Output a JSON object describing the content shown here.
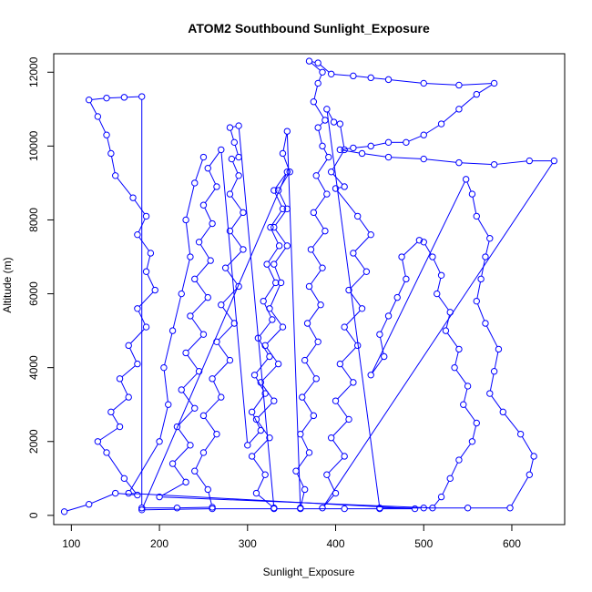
{
  "chart_data": {
    "type": "scatter",
    "title": "ATOM2 Southbound Sunlight_Exposure",
    "xlabel": "Sunlight_Exposure",
    "ylabel": "Altitude (m)",
    "xlim": [
      80,
      660
    ],
    "ylim": [
      -250,
      12500
    ],
    "xticks": [
      100,
      200,
      300,
      400,
      500,
      600
    ],
    "yticks": [
      0,
      2000,
      4000,
      6000,
      8000,
      10000,
      12000
    ],
    "grid": false,
    "plot_style": "points connected by lines (type=o), open circle markers",
    "series": [
      {
        "color": "#0000ff",
        "points": [
          [
            92,
            100
          ],
          [
            120,
            300
          ],
          [
            150,
            600
          ],
          [
            175,
            550
          ],
          [
            160,
            1000
          ],
          [
            140,
            1700
          ],
          [
            130,
            2000
          ],
          [
            155,
            2400
          ],
          [
            145,
            2800
          ],
          [
            165,
            3200
          ],
          [
            155,
            3700
          ],
          [
            175,
            4100
          ],
          [
            165,
            4600
          ],
          [
            185,
            5100
          ],
          [
            175,
            5600
          ],
          [
            195,
            6100
          ],
          [
            185,
            6600
          ],
          [
            190,
            7100
          ],
          [
            175,
            7600
          ],
          [
            185,
            8100
          ],
          [
            170,
            8600
          ],
          [
            150,
            9200
          ],
          [
            145,
            9800
          ],
          [
            140,
            10300
          ],
          [
            130,
            10800
          ],
          [
            120,
            11250
          ],
          [
            140,
            11300
          ],
          [
            160,
            11320
          ],
          [
            180,
            11340
          ],
          [
            180,
            200
          ],
          [
            220,
            200
          ],
          [
            260,
            220
          ],
          [
            255,
            700
          ],
          [
            240,
            1200
          ],
          [
            250,
            1700
          ],
          [
            265,
            2200
          ],
          [
            250,
            2700
          ],
          [
            270,
            3200
          ],
          [
            260,
            3700
          ],
          [
            280,
            4200
          ],
          [
            265,
            4700
          ],
          [
            285,
            5200
          ],
          [
            270,
            5700
          ],
          [
            290,
            6200
          ],
          [
            275,
            6700
          ],
          [
            295,
            7200
          ],
          [
            280,
            7700
          ],
          [
            295,
            8200
          ],
          [
            280,
            8700
          ],
          [
            290,
            9200
          ],
          [
            282,
            9650
          ],
          [
            290,
            9700
          ],
          [
            285,
            10100
          ],
          [
            280,
            10500
          ],
          [
            290,
            10550
          ],
          [
            330,
            200
          ],
          [
            310,
            600
          ],
          [
            320,
            1100
          ],
          [
            305,
            1600
          ],
          [
            325,
            2100
          ],
          [
            310,
            2600
          ],
          [
            330,
            3100
          ],
          [
            315,
            3600
          ],
          [
            335,
            4100
          ],
          [
            320,
            4600
          ],
          [
            340,
            5100
          ],
          [
            325,
            5600
          ],
          [
            338,
            6300
          ],
          [
            330,
            6800
          ],
          [
            345,
            7300
          ],
          [
            330,
            7800
          ],
          [
            345,
            8300
          ],
          [
            335,
            8800
          ],
          [
            348,
            9300
          ],
          [
            340,
            9800
          ],
          [
            345,
            10400
          ],
          [
            360,
            200
          ],
          [
            365,
            700
          ],
          [
            355,
            1200
          ],
          [
            370,
            1700
          ],
          [
            360,
            2200
          ],
          [
            375,
            2700
          ],
          [
            362,
            3200
          ],
          [
            378,
            3700
          ],
          [
            365,
            4200
          ],
          [
            380,
            4700
          ],
          [
            368,
            5200
          ],
          [
            383,
            5700
          ],
          [
            370,
            6200
          ],
          [
            385,
            6700
          ],
          [
            372,
            7200
          ],
          [
            388,
            7700
          ],
          [
            375,
            8200
          ],
          [
            390,
            8700
          ],
          [
            378,
            9200
          ],
          [
            392,
            9700
          ],
          [
            385,
            10000
          ],
          [
            380,
            10500
          ],
          [
            388,
            10700
          ],
          [
            375,
            11200
          ],
          [
            380,
            11700
          ],
          [
            385,
            12000
          ],
          [
            370,
            12300
          ],
          [
            380,
            12250
          ],
          [
            395,
            11950
          ],
          [
            420,
            11900
          ],
          [
            440,
            11850
          ],
          [
            460,
            11800
          ],
          [
            500,
            11700
          ],
          [
            540,
            11650
          ],
          [
            580,
            11700
          ],
          [
            560,
            11400
          ],
          [
            540,
            11000
          ],
          [
            520,
            10600
          ],
          [
            500,
            10300
          ],
          [
            480,
            10100
          ],
          [
            460,
            10100
          ],
          [
            440,
            10000
          ],
          [
            420,
            9950
          ],
          [
            405,
            9900
          ],
          [
            430,
            9800
          ],
          [
            460,
            9700
          ],
          [
            500,
            9650
          ],
          [
            540,
            9550
          ],
          [
            580,
            9500
          ],
          [
            620,
            9600
          ],
          [
            648,
            9600
          ],
          [
            385,
            200
          ],
          [
            400,
            600
          ],
          [
            390,
            1100
          ],
          [
            410,
            1600
          ],
          [
            395,
            2100
          ],
          [
            415,
            2600
          ],
          [
            400,
            3100
          ],
          [
            420,
            3600
          ],
          [
            405,
            4100
          ],
          [
            425,
            4600
          ],
          [
            410,
            5100
          ],
          [
            430,
            5600
          ],
          [
            415,
            6100
          ],
          [
            435,
            6600
          ],
          [
            420,
            7100
          ],
          [
            440,
            7600
          ],
          [
            425,
            8100
          ],
          [
            400,
            8850
          ],
          [
            410,
            8900
          ],
          [
            395,
            9300
          ],
          [
            410,
            9900
          ],
          [
            405,
            10600
          ],
          [
            398,
            10650
          ],
          [
            390,
            11000
          ],
          [
            450,
            200
          ],
          [
            500,
            200
          ],
          [
            550,
            200
          ],
          [
            598,
            200
          ],
          [
            620,
            1100
          ],
          [
            625,
            1600
          ],
          [
            610,
            2200
          ],
          [
            590,
            2800
          ],
          [
            575,
            3300
          ],
          [
            580,
            3900
          ],
          [
            585,
            4500
          ],
          [
            570,
            5200
          ],
          [
            560,
            5800
          ],
          [
            565,
            6400
          ],
          [
            570,
            7000
          ],
          [
            575,
            7500
          ],
          [
            560,
            8100
          ],
          [
            555,
            8700
          ],
          [
            548,
            9100
          ],
          [
            440,
            3800
          ],
          [
            455,
            4300
          ],
          [
            450,
            4900
          ],
          [
            460,
            5400
          ],
          [
            470,
            5900
          ],
          [
            480,
            6400
          ],
          [
            475,
            7000
          ],
          [
            495,
            7450
          ],
          [
            500,
            7400
          ],
          [
            510,
            7000
          ],
          [
            520,
            6500
          ],
          [
            515,
            6000
          ],
          [
            530,
            5500
          ],
          [
            525,
            5000
          ],
          [
            540,
            4500
          ],
          [
            535,
            4000
          ],
          [
            550,
            3500
          ],
          [
            545,
            3000
          ],
          [
            560,
            2500
          ],
          [
            555,
            2000
          ],
          [
            540,
            1500
          ],
          [
            530,
            1000
          ],
          [
            520,
            500
          ],
          [
            510,
            200
          ],
          [
            200,
            500
          ],
          [
            230,
            900
          ],
          [
            215,
            1400
          ],
          [
            235,
            1900
          ],
          [
            220,
            2400
          ],
          [
            240,
            2900
          ],
          [
            225,
            3400
          ],
          [
            245,
            3900
          ],
          [
            230,
            4400
          ],
          [
            250,
            4900
          ],
          [
            235,
            5400
          ],
          [
            255,
            5900
          ],
          [
            240,
            6400
          ],
          [
            258,
            6900
          ],
          [
            245,
            7400
          ],
          [
            260,
            7900
          ],
          [
            250,
            8400
          ],
          [
            265,
            8900
          ],
          [
            255,
            9400
          ],
          [
            270,
            9900
          ],
          [
            300,
            1900
          ],
          [
            315,
            2300
          ],
          [
            305,
            2800
          ],
          [
            320,
            3300
          ],
          [
            308,
            3800
          ],
          [
            325,
            4300
          ],
          [
            312,
            4800
          ],
          [
            328,
            5300
          ],
          [
            318,
            5800
          ],
          [
            332,
            6300
          ],
          [
            322,
            6800
          ],
          [
            336,
            7300
          ],
          [
            326,
            7800
          ],
          [
            340,
            8300
          ],
          [
            330,
            8800
          ],
          [
            345,
            9300
          ],
          [
            180,
            150
          ],
          [
            260,
            180
          ],
          [
            330,
            180
          ],
          [
            360,
            180
          ],
          [
            410,
            180
          ],
          [
            450,
            180
          ],
          [
            490,
            180
          ],
          [
            165,
            600
          ],
          [
            200,
            2000
          ],
          [
            210,
            3000
          ],
          [
            205,
            4000
          ],
          [
            215,
            5000
          ],
          [
            225,
            6000
          ],
          [
            235,
            7000
          ],
          [
            230,
            8000
          ],
          [
            240,
            9000
          ],
          [
            250,
            9700
          ]
        ]
      }
    ]
  }
}
